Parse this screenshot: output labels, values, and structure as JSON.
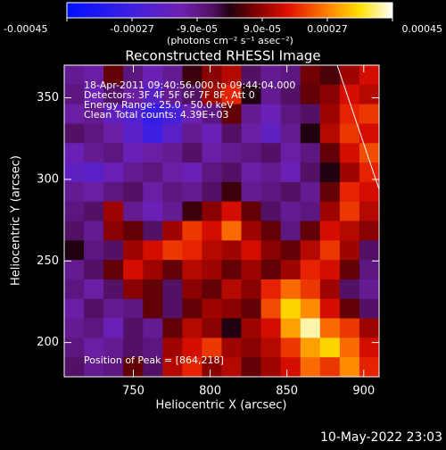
{
  "chart_data": {
    "type": "heatmap",
    "title": "Reconstructed RHESSI Image",
    "x_label": "Heliocentric X (arcsec)",
    "y_label": "Heliocentric Y (arcsec)",
    "xlim": [
      705,
      910
    ],
    "ylim": [
      179,
      370
    ],
    "xticks": [
      750,
      800,
      850,
      900
    ],
    "yticks": [
      200,
      250,
      300,
      350
    ],
    "annotations": [
      "18-Apr-2011 09:40:56.000 to 09:44:04.000",
      "Detectors: 3F 4F 5F 6F 7F 8F, Att 0",
      "Energy Range: 25.0 - 50.0 keV",
      "Clean     Total counts: 4.39E+03"
    ],
    "peak_label": "Position of Peak = [864,218]",
    "timestamp": "10-May-2022 23:03",
    "colorbar": {
      "lim": [
        -0.00045,
        0.00045
      ],
      "ticks": [
        -0.00045,
        -0.00027,
        {
          "value": -9e-05,
          "label": "-9.0e-05"
        },
        {
          "value": 9e-05,
          "label": "9.0e-05"
        },
        0.00027,
        0.00045
      ],
      "label": "(photons cm⁻² s⁻¹ asec⁻²)"
    },
    "z": [
      [
        -0.0001,
        -0.00012,
        5e-05,
        -8e-05,
        -0.00015,
        -0.0001,
        2e-05,
        8e-05,
        0.00012,
        -5e-05,
        -0.0001,
        -8e-05,
        6e-05,
        3e-05,
        0.0001,
        0.00015
      ],
      [
        -8e-05,
        -0.00015,
        -5e-05,
        -0.00012,
        -0.0002,
        -0.0001,
        -5e-05,
        0.0001,
        0.00018,
        0,
        -0.0001,
        -5e-05,
        5e-05,
        8e-05,
        0.00015,
        0.00012
      ],
      [
        -0.00012,
        -0.0001,
        -0.00018,
        -0.00022,
        -0.0003,
        -0.00025,
        -0.00015,
        -8e-05,
        5e-05,
        -0.0001,
        -0.00015,
        -8e-05,
        -5e-05,
        0.0001,
        0.00018,
        0.0002
      ],
      [
        -5e-05,
        -8e-05,
        -0.00012,
        -0.0002,
        -0.00028,
        -0.0002,
        -0.0001,
        -0.00015,
        -5e-05,
        -0.00012,
        -0.00018,
        -0.0001,
        0,
        0.00012,
        0.0002,
        0.00015
      ],
      [
        -0.00015,
        -0.0001,
        -8e-05,
        -0.00015,
        -0.00012,
        -0.0001,
        -5e-05,
        -0.00012,
        -0.0001,
        -8e-05,
        -5e-05,
        -0.00012,
        -8e-05,
        5e-05,
        0.00015,
        0.00022
      ],
      [
        -0.00018,
        -0.0002,
        -0.00015,
        -0.0001,
        -8e-05,
        -0.00012,
        -0.00015,
        -8e-05,
        -5e-05,
        -0.00012,
        -0.0001,
        -0.00015,
        -5e-05,
        0,
        0.0001,
        0.00018
      ],
      [
        -0.0001,
        -0.00012,
        -8e-05,
        -5e-05,
        -0.00012,
        -8e-05,
        -0.0001,
        -5e-05,
        2e-05,
        -0.0001,
        -8e-05,
        -5e-05,
        -0.0001,
        5e-05,
        0.00018,
        0.00015
      ],
      [
        -8e-05,
        -5e-05,
        0.0001,
        -0.0001,
        -0.00015,
        -0.0001,
        2e-05,
        8e-05,
        0.00015,
        5e-05,
        -5e-05,
        -0.0001,
        -8e-05,
        0.0001,
        0.0002,
        0.00012
      ],
      [
        -5e-05,
        -0.0001,
        8e-05,
        5e-05,
        -5e-05,
        0.0001,
        0.0002,
        0.00015,
        0.00025,
        0.0001,
        5e-05,
        -8e-05,
        5e-05,
        0.00015,
        0.00012,
        8e-05
      ],
      [
        0,
        -8e-05,
        -5e-05,
        0.0001,
        0.00015,
        0.0002,
        0.00018,
        0.00012,
        0.0001,
        0.00015,
        8e-05,
        5e-05,
        0.00012,
        0.0002,
        0.0001,
        -5e-05
      ],
      [
        -0.0001,
        -5e-05,
        5e-05,
        0.00015,
        0.0001,
        5e-05,
        0.00012,
        0.0001,
        5e-05,
        0.0001,
        5e-05,
        0.0001,
        0.00018,
        0.00015,
        5e-05,
        -8e-05
      ],
      [
        -8e-05,
        -0.00012,
        -5e-05,
        8e-05,
        5e-05,
        -5e-05,
        8e-05,
        5e-05,
        0.00012,
        8e-05,
        0.00018,
        0.00025,
        0.0002,
        0.0001,
        -5e-05,
        -0.0001
      ],
      [
        -0.00012,
        -5e-05,
        -0.0001,
        -8e-05,
        5e-05,
        -5e-05,
        5e-05,
        0.0001,
        8e-05,
        5e-05,
        0.00022,
        0.00035,
        0.00028,
        0.00015,
        5e-05,
        -5e-05
      ],
      [
        -0.0001,
        -8e-05,
        -0.00015,
        -5e-05,
        -0.0001,
        5e-05,
        0.00012,
        8e-05,
        0,
        0.0001,
        0.00015,
        0.0003,
        0.00042,
        0.00025,
        0.0002,
        0.0001
      ],
      [
        -8e-05,
        -0.00012,
        -0.0001,
        -5e-05,
        -8e-05,
        0.0001,
        0.00015,
        0.0002,
        0.0001,
        8e-05,
        0.00012,
        0.0002,
        0.0003,
        0.00035,
        0.00025,
        0.00015
      ],
      [
        -5e-05,
        -0.0001,
        -8e-05,
        5e-05,
        -5e-05,
        0.00012,
        0.00018,
        8e-05,
        0.00012,
        5e-05,
        0.0001,
        0.00015,
        0.00025,
        0.0002,
        0.00028,
        0.00018
      ]
    ]
  }
}
